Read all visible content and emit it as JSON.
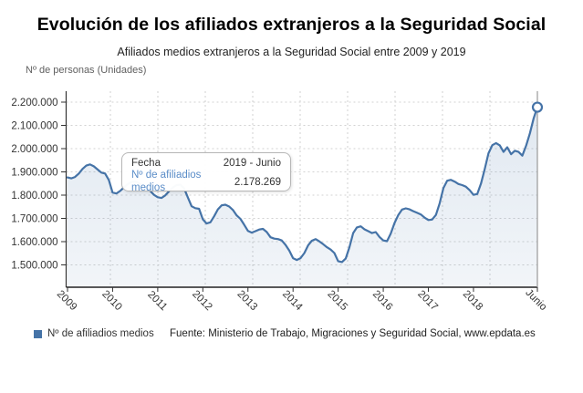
{
  "header": {
    "title": "Evolución de los afiliados extranjeros a la Seguridad Social",
    "subtitle": "Afiliados medios extranjeros a la Seguridad Social entre 2009 y 2019",
    "y_axis_unit_label": "Nº de personas (Unidades)"
  },
  "tooltip": {
    "date_label": "Fecha",
    "date_value": "2019 - Junio",
    "series_label": "Nº de afiliadios medios",
    "series_value": "2.178.269"
  },
  "legend": {
    "series_label": "Nº de afiliadios medios"
  },
  "footer": {
    "source": "Fuente: Ministerio de Trabajo, Migraciones y Seguridad Social, www.epdata.es"
  },
  "colors": {
    "line": "#4573a7",
    "area_fill": "rgba(69,115,167,0.12)",
    "grid": "#d2d2d2",
    "axis": "#333333",
    "plot_right_border": "#999999",
    "tooltip_series_label": "#5b8dc8",
    "legend_marker": "#4573a7"
  },
  "chart_data": {
    "type": "line",
    "title": "Evolución de los afiliados extranjeros a la Seguridad Social",
    "subtitle": "Afiliados medios extranjeros a la Seguridad Social entre 2009 y 2019",
    "xlabel": "",
    "ylabel": "Nº de personas (Unidades)",
    "grid": "dashed",
    "legend_position": "bottom-left",
    "x_start": "2009-01",
    "x_end": "2019-06",
    "frequency": "monthly",
    "x_tick_labels": [
      "2009",
      "2010",
      "2011",
      "2012",
      "2013",
      "2014",
      "2015",
      "2016",
      "2017",
      "2018",
      "Junio"
    ],
    "y_ticks": [
      1500000,
      1600000,
      1700000,
      1800000,
      1900000,
      2000000,
      2100000,
      2200000
    ],
    "ylim": [
      1404000,
      2247000
    ],
    "highlighted_point": {
      "x": "2019-06",
      "label": "2019 - Junio",
      "value": 2178269
    },
    "series": [
      {
        "name": "Nº de afiliadios medios",
        "values": [
          1876000,
          1872000,
          1878000,
          1893000,
          1913000,
          1927000,
          1932000,
          1924000,
          1910000,
          1897000,
          1893000,
          1865000,
          1811000,
          1807000,
          1818000,
          1833000,
          1847000,
          1856000,
          1859000,
          1851000,
          1841000,
          1829000,
          1818000,
          1801000,
          1791000,
          1788000,
          1799000,
          1816000,
          1833000,
          1843000,
          1845000,
          1830000,
          1791000,
          1752000,
          1744000,
          1741000,
          1696000,
          1678000,
          1683000,
          1709000,
          1739000,
          1756000,
          1759000,
          1751000,
          1736000,
          1713000,
          1698000,
          1673000,
          1646000,
          1639000,
          1645000,
          1652000,
          1655000,
          1641000,
          1619000,
          1613000,
          1611000,
          1605000,
          1586000,
          1561000,
          1529000,
          1521000,
          1529000,
          1551000,
          1584000,
          1604000,
          1611000,
          1601000,
          1589000,
          1576000,
          1566000,
          1551000,
          1516000,
          1512000,
          1527000,
          1576000,
          1637000,
          1661000,
          1666000,
          1653000,
          1645000,
          1637000,
          1641000,
          1620000,
          1605000,
          1602000,
          1635000,
          1680000,
          1715000,
          1738000,
          1743000,
          1739000,
          1731000,
          1724000,
          1717000,
          1703000,
          1693000,
          1695000,
          1715000,
          1765000,
          1830000,
          1862000,
          1866000,
          1858000,
          1848000,
          1843000,
          1836000,
          1821000,
          1801000,
          1805000,
          1850000,
          1912000,
          1980000,
          2015000,
          2024000,
          2014000,
          1986000,
          2006000,
          1976000,
          1991000,
          1986000,
          1970000,
          2012000,
          2066000,
          2130000,
          2178269
        ]
      }
    ]
  }
}
